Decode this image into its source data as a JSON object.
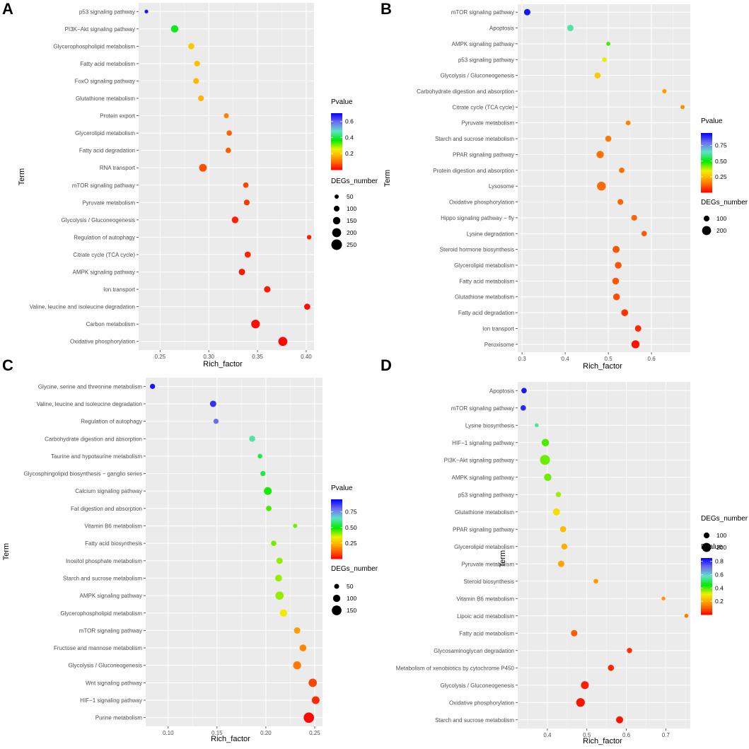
{
  "chart_data": [
    {
      "panel": "A",
      "type": "scatter",
      "xlabel": "Rich_factor",
      "ylabel": "Term",
      "xlim": [
        0.228,
        0.408
      ],
      "xticks": [
        0.25,
        0.3,
        0.35,
        0.4
      ],
      "xtick_labels": [
        "0.25",
        "0.30",
        "0.35",
        "0.40"
      ],
      "color_legend": {
        "title": "Pvalue",
        "min": 0,
        "max": 0.7,
        "ticks": [
          0.6,
          0.4,
          0.2
        ],
        "tick_labels": [
          "0.6",
          "0.4",
          "0.2"
        ]
      },
      "size_legend": {
        "title": "DEGs_number",
        "values": [
          50,
          100,
          150,
          200,
          250
        ],
        "labels": [
          "50",
          "100",
          "150",
          "200",
          "250"
        ],
        "min": 30,
        "max": 250
      },
      "terms": [
        "p53 signaling pathway",
        "PI3K−Akt signaling pathway",
        "Glycerophospholipid metabolism",
        "Fatty acid metabolism",
        "FoxO signaling pathway",
        "Glutathione metabolism",
        "Protein export",
        "Glycerolipid metabolism",
        "Fatty acid degradation",
        "RNA transport",
        "mTOR signaling pathway",
        "Pyruvate metabolism",
        "Glycolysis / Gluconeogenesis",
        "Regulation of autophagy",
        "Citrate cycle (TCA cycle)",
        "AMPK signaling pathway",
        "Ion transport",
        "Valine, leucine and isoleucine degradation",
        "Carbon metabolism",
        "Oxidative phosphorylation"
      ],
      "rich_factor": [
        0.236,
        0.265,
        0.282,
        0.288,
        0.287,
        0.292,
        0.318,
        0.321,
        0.32,
        0.294,
        0.338,
        0.339,
        0.327,
        0.403,
        0.34,
        0.334,
        0.36,
        0.401,
        0.348,
        0.376
      ],
      "pvalue": [
        0.68,
        0.38,
        0.2,
        0.19,
        0.18,
        0.17,
        0.12,
        0.09,
        0.08,
        0.07,
        0.06,
        0.05,
        0.03,
        0.02,
        0.03,
        0.02,
        0.02,
        0.01,
        0.01,
        0.005
      ],
      "degs_number": [
        35,
        150,
        110,
        100,
        100,
        100,
        75,
        90,
        90,
        160,
        90,
        100,
        130,
        60,
        110,
        120,
        120,
        110,
        190,
        200
      ]
    },
    {
      "panel": "B",
      "type": "scatter",
      "xlabel": "Rich_factor",
      "ylabel": "Term",
      "xlim": [
        0.29,
        0.69
      ],
      "xticks": [
        0.3,
        0.4,
        0.5,
        0.6
      ],
      "xtick_labels": [
        "0.3",
        "0.4",
        "0.5",
        "0.6"
      ],
      "color_legend": {
        "title": "Pvalue",
        "min": 0,
        "max": 0.95,
        "ticks": [
          0.75,
          0.5,
          0.25
        ],
        "tick_labels": [
          "0.75",
          "0.50",
          "0.25"
        ]
      },
      "size_legend": {
        "title": "DEGs_number",
        "values": [
          100,
          200
        ],
        "labels": [
          "100",
          "200"
        ],
        "min": 30,
        "max": 250
      },
      "terms": [
        "mTOR signaling pathway",
        "Apoptosis",
        "AMPK signaling pathway",
        "p53 signaling pathway",
        "Glycolysis / Gluconeogenesis",
        "Carbohydrate digestion and absorption",
        "Citrate cycle (TCA cycle)",
        "Pyruvate metabolism",
        "Starch and sucrose metabolism",
        "PPAR signaling pathway",
        "Protein digestion and absorption",
        "Lysosome",
        "Oxidative phosphorylation",
        "Hippo signaling pathway − fly",
        "Lysine degradation",
        "Steroid hormone biosynthesis",
        "Glycerolipid metabolism",
        "Fatty acid metabolism",
        "Glutathione metabolism",
        "Fatty acid degradation",
        "Ion transport",
        "Peroxisome"
      ],
      "rich_factor": [
        0.312,
        0.412,
        0.5,
        0.491,
        0.475,
        0.63,
        0.672,
        0.546,
        0.5,
        0.481,
        0.531,
        0.484,
        0.528,
        0.56,
        0.583,
        0.518,
        0.523,
        0.517,
        0.519,
        0.538,
        0.569,
        0.563
      ],
      "pvalue": [
        0.92,
        0.62,
        0.45,
        0.35,
        0.28,
        0.2,
        0.18,
        0.17,
        0.15,
        0.14,
        0.13,
        0.13,
        0.12,
        0.12,
        0.11,
        0.1,
        0.1,
        0.1,
        0.09,
        0.06,
        0.05,
        0.02
      ],
      "degs_number": [
        120,
        120,
        50,
        65,
        110,
        55,
        50,
        70,
        110,
        150,
        90,
        195,
        100,
        100,
        90,
        140,
        130,
        130,
        130,
        135,
        120,
        170
      ]
    },
    {
      "panel": "C",
      "type": "scatter",
      "xlabel": "Rich_factor",
      "ylabel": "Term",
      "xlim": [
        0.077,
        0.258
      ],
      "xticks": [
        0.1,
        0.15,
        0.2,
        0.25
      ],
      "xtick_labels": [
        "0.10",
        "0.15",
        "0.20",
        "0.25"
      ],
      "color_legend": {
        "title": "Pvalue",
        "min": 0,
        "max": 0.95,
        "ticks": [
          0.75,
          0.5,
          0.25
        ],
        "tick_labels": [
          "0.75",
          "0.50",
          "0.25"
        ]
      },
      "size_legend": {
        "title": "DEGs_number",
        "values": [
          50,
          100,
          150
        ],
        "labels": [
          "50",
          "100",
          "150"
        ],
        "min": 20,
        "max": 170
      },
      "terms": [
        "Glycine, serine and threonine metabolism",
        "Valine, leucine and isoleucine degradation",
        "Regulation of autophagy",
        "Carbohydrate digestion and absorption",
        "Taurine and hypotaurine metabolism",
        "Glycosphingolipid biosynthesis − ganglio series",
        "Calcium signaling pathway",
        "Fat digestion and absorption",
        "Vitamin B6 metabolism",
        "Fatty acid biosynthesis",
        "Inositol phosphate metabolism",
        "Starch and sucrose metabolism",
        "AMPK signaling pathway",
        "Glycerophospholipid metabolism",
        "mTOR signaling pathway",
        "Fructose and mannose metabolism",
        "Glycolysis / Gluconeogenesis",
        "Wnt signaling pathway",
        "HIF−1 signaling pathway",
        "Purine metabolism"
      ],
      "rich_factor": [
        0.084,
        0.146,
        0.149,
        0.186,
        0.194,
        0.197,
        0.202,
        0.203,
        0.23,
        0.208,
        0.214,
        0.213,
        0.214,
        0.218,
        0.232,
        0.238,
        0.232,
        0.248,
        0.251,
        0.244
      ],
      "pvalue": [
        0.92,
        0.88,
        0.8,
        0.62,
        0.55,
        0.55,
        0.48,
        0.45,
        0.42,
        0.42,
        0.4,
        0.4,
        0.4,
        0.33,
        0.2,
        0.17,
        0.15,
        0.08,
        0.05,
        0.01
      ],
      "degs_number": [
        55,
        80,
        55,
        75,
        45,
        55,
        110,
        60,
        35,
        60,
        80,
        90,
        120,
        100,
        80,
        90,
        115,
        120,
        110,
        165
      ]
    },
    {
      "panel": "D",
      "type": "scatter",
      "xlabel": "Rich_factor",
      "ylabel": "Term",
      "xlim": [
        0.325,
        0.762
      ],
      "xticks": [
        0.4,
        0.5,
        0.6,
        0.7
      ],
      "xtick_labels": [
        "0.4",
        "0.5",
        "0.6",
        "0.7"
      ],
      "color_legend": {
        "title": "Pvalue",
        "min": 0,
        "max": 0.85,
        "ticks": [
          0.8,
          0.6,
          0.4,
          0.2
        ],
        "tick_labels": [
          "0.8",
          "0.6",
          "0.4",
          "0.2"
        ]
      },
      "size_legend": {
        "title": "DEGs_number",
        "values": [
          100,
          200
        ],
        "labels": [
          "100",
          "200"
        ],
        "min": 30,
        "max": 250
      },
      "terms": [
        "Apoptosis",
        "mTOR signaling pathway",
        "Lysine biosynthesis",
        "HIF−1 signaling pathway",
        "PI3K−Akt signaling pathway",
        "AMPK signaling pathway",
        "p53 signaling pathway",
        "Glutathione metabolism",
        "PPAR signaling pathway",
        "Glycerolipid metabolism",
        "Pyruvate metabolism",
        "Steroid biosynthesis",
        "Vitamin B6 metabolism",
        "Lipoic acid metabolism",
        "Fatty acid metabolism",
        "Glycosaminoglycan degradation",
        "Metabolism of xenobiotics by cytochrome P450",
        "Glycolysis / Gluconeogenesis",
        "Oxidative phosphorylation",
        "Starch and sucrose metabolism"
      ],
      "rich_factor": [
        0.341,
        0.339,
        0.373,
        0.395,
        0.394,
        0.401,
        0.428,
        0.423,
        0.44,
        0.443,
        0.435,
        0.523,
        0.694,
        0.752,
        0.468,
        0.608,
        0.561,
        0.495,
        0.484,
        0.583
      ],
      "pvalue": [
        0.82,
        0.8,
        0.55,
        0.4,
        0.38,
        0.38,
        0.35,
        0.28,
        0.22,
        0.2,
        0.19,
        0.18,
        0.17,
        0.14,
        0.1,
        0.05,
        0.04,
        0.03,
        0.02,
        0.02
      ],
      "degs_number": [
        90,
        90,
        40,
        150,
        230,
        150,
        85,
        140,
        110,
        105,
        120,
        70,
        40,
        45,
        120,
        85,
        110,
        165,
        190,
        140
      ]
    }
  ]
}
